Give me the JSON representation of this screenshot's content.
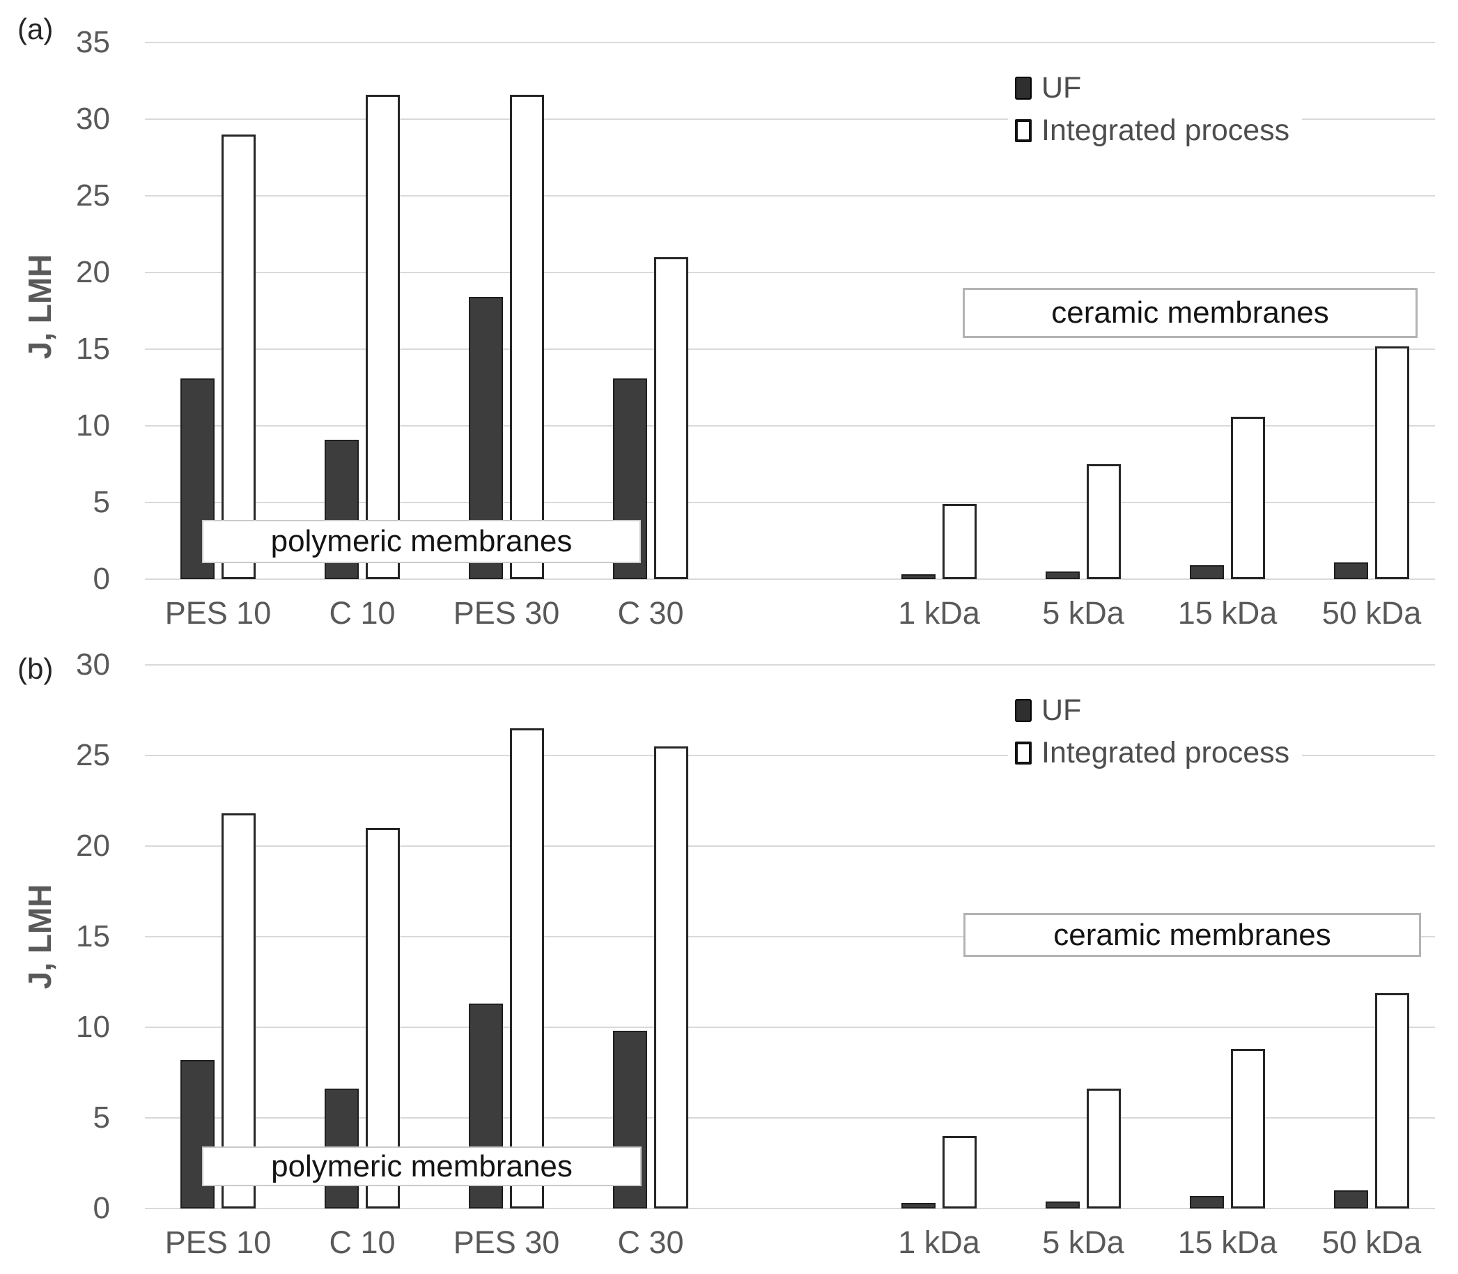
{
  "colors": {
    "uf_bar_fill": "#3d3d3d",
    "integrated_bar_fill": "#ffffff",
    "bar_border": "#262626",
    "gridline": "#d9d9d9",
    "axis_text": "#595959",
    "legend_text": "#4d4d4d",
    "annotation_text": "#141414"
  },
  "chart_data": [
    {
      "type": "bar",
      "panel_label": "(a)",
      "ylabel": "J, LMH",
      "ylim": [
        0,
        35
      ],
      "yticks": [
        0,
        5,
        10,
        15,
        20,
        25,
        30,
        35
      ],
      "grid": "horizontal",
      "legend_position": "top-right",
      "categories": [
        "PES 10",
        "C 10",
        "PES 30",
        "C 30",
        "1 kDa",
        "5 kDa",
        "15 kDa",
        "50 kDa"
      ],
      "series": [
        {
          "name": "UF",
          "values": [
            13.1,
            9.1,
            18.4,
            13.1,
            0.3,
            0.5,
            0.9,
            1.1
          ]
        },
        {
          "name": "Integrated process",
          "values": [
            29.0,
            31.6,
            31.6,
            21.0,
            4.9,
            7.5,
            10.6,
            15.2
          ]
        }
      ],
      "annotations": {
        "polymeric": "polymeric membranes",
        "ceramic": "ceramic membranes"
      }
    },
    {
      "type": "bar",
      "panel_label": "(b)",
      "ylabel": "J, LMH",
      "ylim": [
        0,
        30
      ],
      "yticks": [
        0,
        5,
        10,
        15,
        20,
        25,
        30
      ],
      "grid": "horizontal",
      "legend_position": "top-right",
      "categories": [
        "PES 10",
        "C 10",
        "PES 30",
        "C 30",
        "1 kDa",
        "5 kDa",
        "15 kDa",
        "50 kDa"
      ],
      "series": [
        {
          "name": "UF",
          "values": [
            8.2,
            6.6,
            11.3,
            9.8,
            0.3,
            0.4,
            0.7,
            1.0
          ]
        },
        {
          "name": "Integrated process",
          "values": [
            21.8,
            21.0,
            26.5,
            25.5,
            4.0,
            6.6,
            8.8,
            11.9
          ]
        }
      ],
      "annotations": {
        "polymeric": "polymeric membranes",
        "ceramic": "ceramic membranes"
      }
    }
  ]
}
